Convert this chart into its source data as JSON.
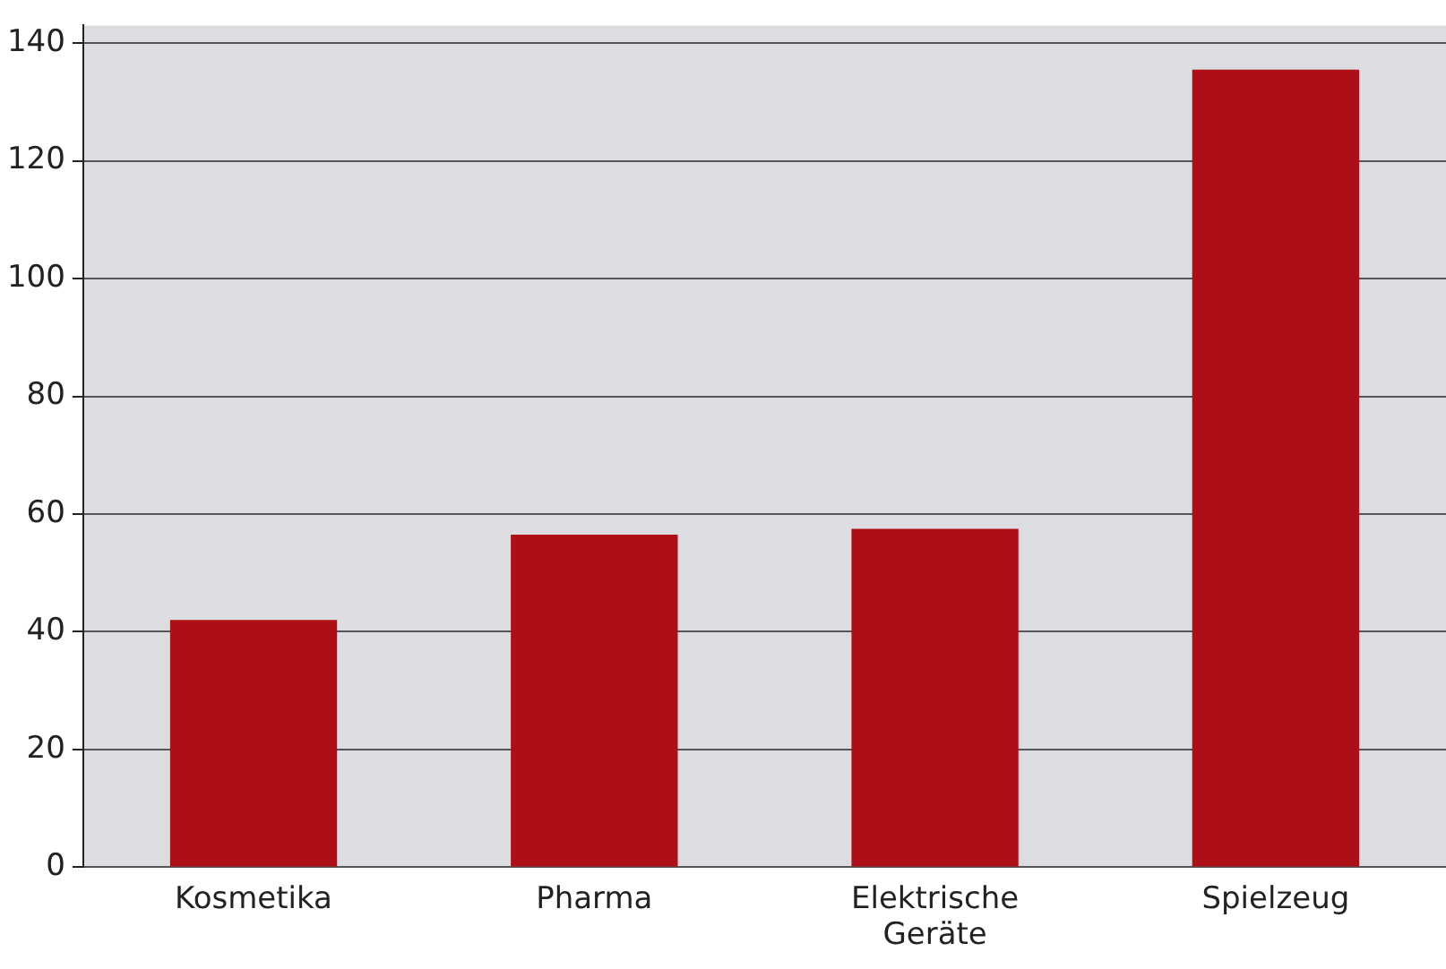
{
  "chart_data": {
    "type": "bar",
    "categories": [
      "Kosmetika",
      "Pharma",
      "Elektrische Geräte",
      "Spielzeug"
    ],
    "values": [
      42,
      56.5,
      57.5,
      135.5
    ],
    "color": "#ae0f17",
    "ylim": [
      0,
      143
    ],
    "yticks": [
      0,
      20,
      40,
      60,
      80,
      100,
      120,
      140
    ],
    "grid": "y",
    "legend": false
  }
}
